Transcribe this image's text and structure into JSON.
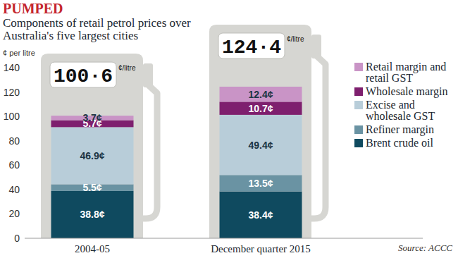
{
  "chart_data": {
    "type": "bar",
    "stacked": true,
    "data_labels": true,
    "grid": false,
    "legend": "right",
    "title": "PUMPED",
    "subtitle": "Components of retail petrol prices over Australia's five largest cities",
    "y_label": "¢ per litre",
    "source": "Source: ACCC",
    "categories": [
      "2004-05",
      "December quarter 2015"
    ],
    "ylim": [
      0,
      140
    ],
    "yticks": [
      0,
      20,
      40,
      60,
      80,
      100,
      120,
      140
    ],
    "totals": [
      100.6,
      124.4
    ],
    "total_labels": [
      "100·6",
      "124·4"
    ],
    "total_unit": "¢/litre",
    "series": [
      {
        "name": "Brent crude oil",
        "color": "#0f4a5f",
        "values": [
          38.8,
          38.4
        ],
        "value_labels": [
          "38.8¢",
          "38.4¢"
        ]
      },
      {
        "name": "Refiner margin",
        "color": "#6a93a3",
        "values": [
          5.5,
          13.5
        ],
        "value_labels": [
          "5.5¢",
          "13.5¢"
        ]
      },
      {
        "name": "Excise and wholesale GST",
        "color": "#b8cdd9",
        "values": [
          46.9,
          49.4
        ],
        "value_labels": [
          "46.9¢",
          "49.4¢"
        ]
      },
      {
        "name": "Wholesale margin",
        "color": "#7e1f6e",
        "values": [
          5.7,
          10.7
        ],
        "value_labels": [
          "5.7¢",
          "10.7¢"
        ]
      },
      {
        "name": "Retail margin and retail GST",
        "color": "#c994c6",
        "values": [
          3.7,
          12.4
        ],
        "value_labels": [
          "3.7¢",
          "12.4¢"
        ]
      }
    ]
  }
}
